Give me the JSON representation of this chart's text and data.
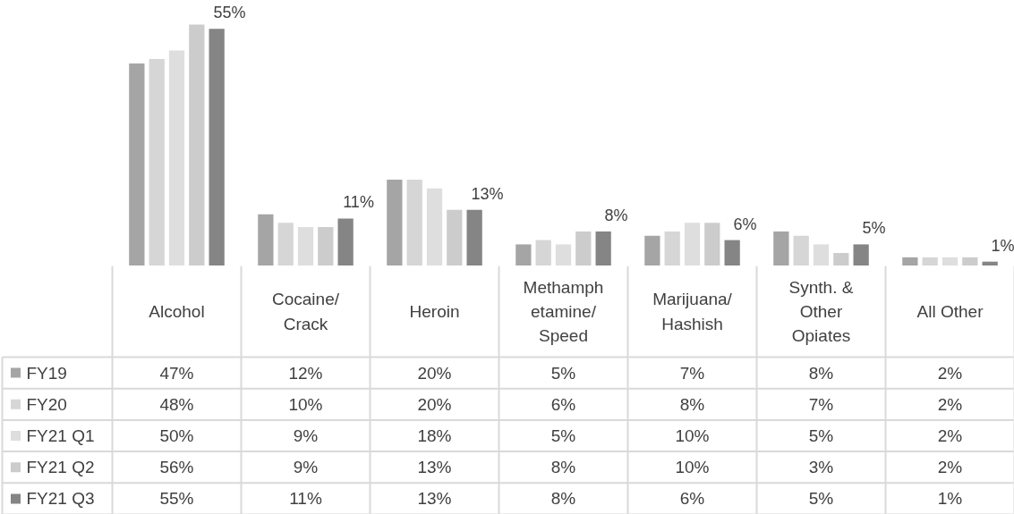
{
  "chart_data": {
    "type": "bar",
    "legend": "bottom left",
    "categories": [
      "Alcohol",
      "Cocaine/\nCrack",
      "Heroin",
      "Methamph\netamine/\nSpeed",
      "Marijuana/\nHashish",
      "Synth. &\nOther\nOpiates",
      "All Other"
    ],
    "series": [
      {
        "name": "FY19",
        "color": "#a5a5a5",
        "values": [
          47,
          12,
          20,
          5,
          7,
          8,
          2
        ],
        "value_labels": [
          "47%",
          "12%",
          "20%",
          "5%",
          "7%",
          "8%",
          "2%"
        ]
      },
      {
        "name": "FY20",
        "color": "#d6d6d6",
        "values": [
          48,
          10,
          20,
          6,
          8,
          7,
          2
        ],
        "value_labels": [
          "48%",
          "10%",
          "20%",
          "6%",
          "8%",
          "7%",
          "2%"
        ]
      },
      {
        "name": "FY21 Q1",
        "color": "#dedede",
        "values": [
          50,
          9,
          18,
          5,
          10,
          5,
          2
        ],
        "value_labels": [
          "50%",
          "9%",
          "18%",
          "5%",
          "10%",
          "5%",
          "2%"
        ]
      },
      {
        "name": "FY21 Q2",
        "color": "#cccccc",
        "values": [
          56,
          9,
          13,
          8,
          10,
          3,
          2
        ],
        "value_labels": [
          "56%",
          "9%",
          "13%",
          "8%",
          "10%",
          "3%",
          "2%"
        ]
      },
      {
        "name": "FY21 Q3",
        "color": "#858585",
        "values": [
          55,
          11,
          13,
          8,
          6,
          5,
          1
        ],
        "value_labels": [
          "55%",
          "11%",
          "13%",
          "8%",
          "6%",
          "5%",
          "1%"
        ]
      }
    ],
    "annotations": [
      "55%",
      "11%",
      "13%",
      "8%",
      "6%",
      "5%",
      "1%"
    ]
  }
}
